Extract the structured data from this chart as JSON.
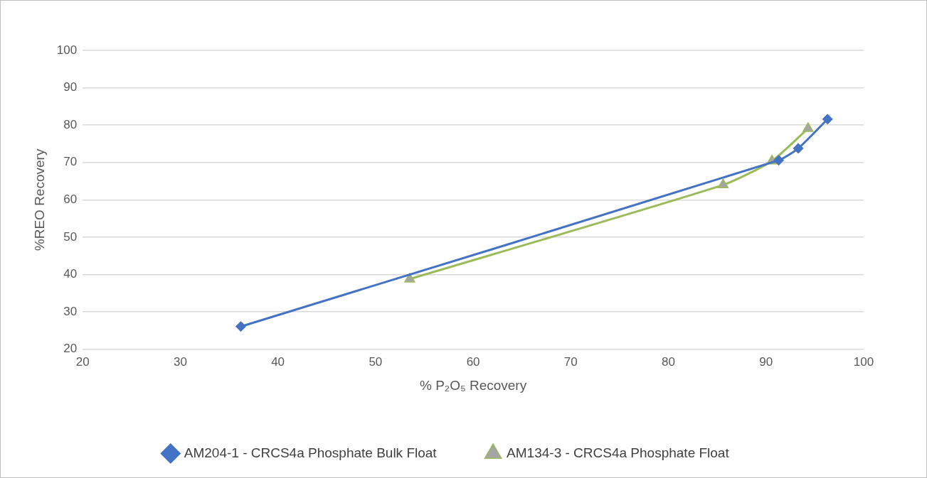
{
  "chart_data": {
    "type": "line",
    "xlabel": "% P₂O₅ Recovery",
    "ylabel": "%REO Recovery",
    "series": [
      {
        "name": "AM204-1 - CRCS4a Phosphate Bulk Float",
        "color": "#4472c4",
        "marker": "diamond",
        "x": [
          36.2,
          91.3,
          93.3,
          96.3
        ],
        "values": [
          26.1,
          70.6,
          73.8,
          81.6
        ]
      },
      {
        "name": "AM134-3 - CRCS4a Phosphate Float",
        "color": "#9bbb59",
        "marker": "triangle",
        "x": [
          53.5,
          85.6,
          90.6,
          94.3
        ],
        "values": [
          38.8,
          64.0,
          70.4,
          79.1
        ]
      }
    ],
    "xlim": [
      20,
      100
    ],
    "xticks": [
      20,
      30,
      40,
      50,
      60,
      70,
      80,
      90,
      100
    ],
    "ylim": [
      20,
      100
    ],
    "yticks": [
      20,
      30,
      40,
      50,
      60,
      70,
      80,
      90,
      100
    ],
    "grid": "y",
    "legend": "bottom",
    "line_style": "solid"
  }
}
